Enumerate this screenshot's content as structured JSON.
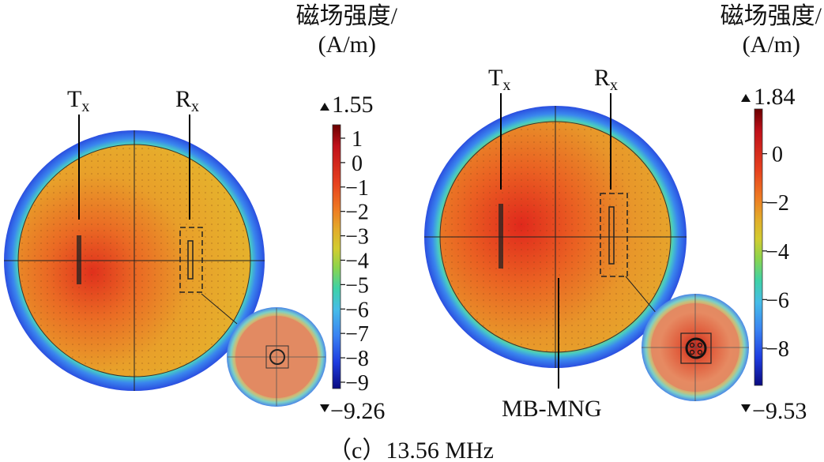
{
  "panels": [
    {
      "unit_title": "磁场强度/",
      "unit": "(A/m)",
      "tx_main": "T",
      "tx_sub": "x",
      "rx_main": "R",
      "rx_sub": "x",
      "max_label": "1.55",
      "min_label": "−9.26",
      "ticks": [
        "1",
        "0",
        "−1",
        "−2",
        "−3",
        "−4",
        "−5",
        "−6",
        "−7",
        "−8",
        "−9"
      ],
      "tick_values": [
        1,
        0,
        -1,
        -2,
        -3,
        -4,
        -5,
        -6,
        -7,
        -8,
        -9
      ],
      "range": [
        -9.26,
        1.55
      ]
    },
    {
      "unit_title": "磁场强度/",
      "unit": "(A/m)",
      "tx_main": "T",
      "tx_sub": "x",
      "rx_main": "R",
      "rx_sub": "x",
      "max_label": "1.84",
      "min_label": "−9.53",
      "material_label": "MB-MNG",
      "ticks": [
        "0",
        "−2",
        "−4",
        "−6",
        "−8"
      ],
      "tick_values": [
        0,
        -2,
        -4,
        -6,
        -8
      ],
      "range": [
        -9.53,
        1.84
      ]
    }
  ],
  "caption": "（c）13.56 MHz",
  "colors": {
    "colormap": [
      "#7a0000",
      "#c0101a",
      "#e03a20",
      "#ee7a22",
      "#e6ad2a",
      "#d4c830",
      "#8fd24a",
      "#3fd0a8",
      "#48b8e8",
      "#3a7af0",
      "#1a3ae0",
      "#0a0a8a"
    ],
    "outer_ring": "#2a5ae8",
    "body_field": "#e89a2a",
    "hot_spot": "#d41e1a",
    "inset_core": "#e2806a"
  }
}
